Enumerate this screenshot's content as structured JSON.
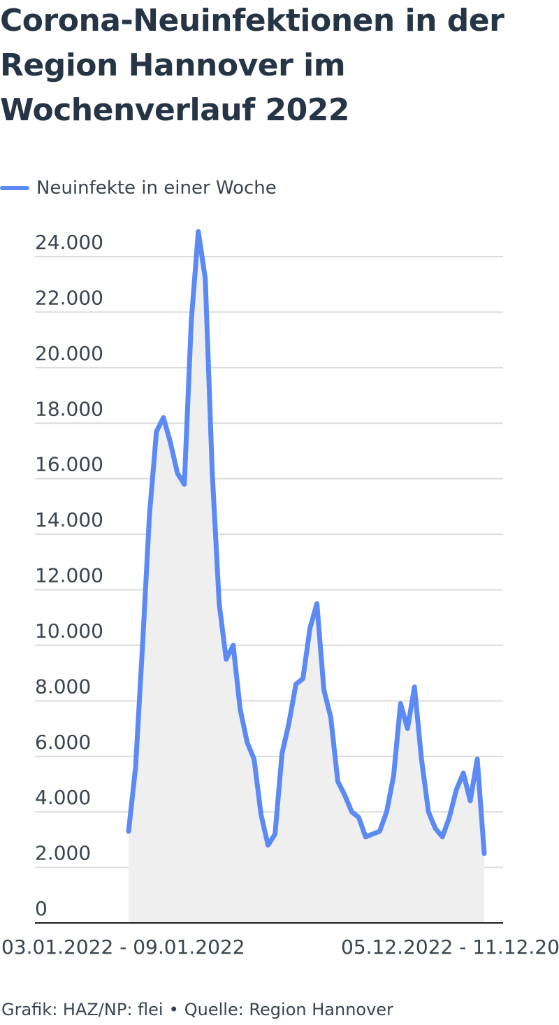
{
  "chart_data": {
    "type": "line",
    "title": "Corona-Neuinfektionen in der Region Hannover im Wochenverlauf 2022",
    "title_lines": [
      "Corona-Neuinfektionen in der",
      "Region Hannover im",
      "Wochenverlauf 2022"
    ],
    "legend": "Neuinfekte in einer Woche",
    "series": [
      {
        "name": "Neuinfekte in einer Woche",
        "color": "#5b8af5",
        "values": [
          3300,
          5600,
          10000,
          14700,
          17700,
          18200,
          17300,
          16200,
          15800,
          21700,
          24900,
          23200,
          16200,
          11500,
          9500,
          10000,
          7700,
          6500,
          5900,
          3900,
          2800,
          3200,
          6100,
          7200,
          8600,
          8800,
          10600,
          11500,
          8400,
          7400,
          5100,
          4600,
          4000,
          3800,
          3100,
          3200,
          3300,
          4000,
          5300,
          7900,
          7000,
          8500,
          5900,
          4000,
          3400,
          3100,
          3800,
          4800,
          5400,
          4400,
          5900,
          2500
        ]
      }
    ],
    "x_labels": {
      "first": "03.01.2022 - 09.01.2022",
      "last": "05.12.2022 - 11.12.20"
    },
    "y_ticks": [
      "0",
      "2.000",
      "4.000",
      "6.000",
      "8.000",
      "10.000",
      "12.000",
      "14.000",
      "16.000",
      "18.000",
      "20.000",
      "22.000",
      "24.000"
    ],
    "ylim": [
      0,
      24000
    ],
    "grid": true,
    "area_fill": "#efefef"
  },
  "footer": {
    "credit": "Grafik: HAZ/NP: flei",
    "separator": "•",
    "source": "Quelle: Region Hannover"
  }
}
